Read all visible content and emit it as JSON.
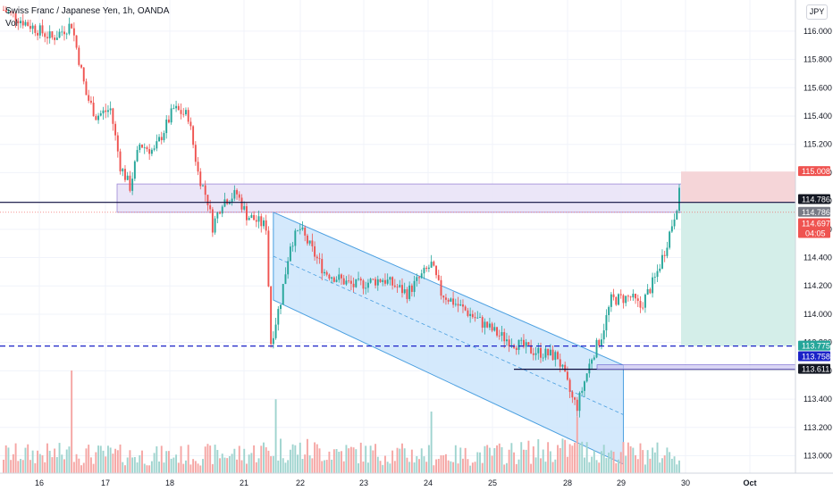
{
  "legend": {
    "symbol": "Swiss Franc / Japanese Yen, 1h, OANDA",
    "indicator": "Vol"
  },
  "currency_button": "JPY",
  "colors": {
    "up": "#26a69a",
    "down": "#ef5350",
    "vol_up": "#9fd4cf",
    "vol_down": "#f5a6a4",
    "zone_fill": "#e8e2f7",
    "zone_stroke": "#9c88d6",
    "channel_fill": "#cce5fb",
    "channel_stroke": "#4a9fe0",
    "profit_fill": "#d4eee9",
    "stop_fill": "#f5d5d8",
    "resistance": "#0c0c3e",
    "dashed_support": "#1b22c8"
  },
  "chart_data": {
    "type": "candlestick",
    "title": "Swiss Franc / Japanese Yen, 1h, OANDA",
    "indicator": "Vol",
    "ylim": [
      112.94,
      116.22
    ],
    "yticks": [
      "116.000",
      "115.800",
      "115.600",
      "115.400",
      "115.200",
      "115.000",
      "114.800",
      "114.600",
      "114.400",
      "114.200",
      "114.000",
      "113.800",
      "113.600",
      "113.400",
      "113.200",
      "113.000"
    ],
    "x_labels": [
      "16",
      "17",
      "18",
      "21",
      "22",
      "23",
      "24",
      "25",
      "28",
      "29",
      "30",
      "Oct"
    ],
    "bars_per_day": 24,
    "days_shown": 10,
    "price_path_keypoints": [
      [
        0,
        116.15
      ],
      [
        10,
        116.05
      ],
      [
        20,
        115.95
      ],
      [
        28,
        116.05
      ],
      [
        34,
        115.55
      ],
      [
        38,
        115.4
      ],
      [
        44,
        115.45
      ],
      [
        48,
        115.05
      ],
      [
        52,
        114.9
      ],
      [
        56,
        115.2
      ],
      [
        62,
        115.15
      ],
      [
        66,
        115.3
      ],
      [
        70,
        115.45
      ],
      [
        76,
        115.4
      ],
      [
        80,
        115.0
      ],
      [
        84,
        114.8
      ],
      [
        86,
        114.62
      ],
      [
        90,
        114.8
      ],
      [
        96,
        114.85
      ],
      [
        100,
        114.7
      ],
      [
        108,
        114.62
      ],
      [
        110,
        113.8
      ],
      [
        114,
        114.1
      ],
      [
        118,
        114.5
      ],
      [
        122,
        114.6
      ],
      [
        132,
        114.3
      ],
      [
        144,
        114.2
      ],
      [
        156,
        114.25
      ],
      [
        166,
        114.15
      ],
      [
        176,
        114.35
      ],
      [
        180,
        114.15
      ],
      [
        192,
        114.0
      ],
      [
        204,
        113.85
      ],
      [
        216,
        113.75
      ],
      [
        228,
        113.7
      ],
      [
        234,
        113.4
      ],
      [
        236,
        113.35
      ],
      [
        242,
        113.7
      ],
      [
        246,
        113.85
      ],
      [
        250,
        114.1
      ],
      [
        258,
        114.12
      ],
      [
        262,
        114.05
      ],
      [
        268,
        114.25
      ],
      [
        272,
        114.45
      ],
      [
        276,
        114.7
      ],
      [
        278,
        114.85
      ]
    ],
    "volume_profile_keypoints": [
      [
        0,
        0.22
      ],
      [
        30,
        0.22
      ],
      [
        60,
        0.2
      ],
      [
        100,
        0.22
      ],
      [
        110,
        0.28
      ],
      [
        150,
        0.23
      ],
      [
        190,
        0.2
      ],
      [
        230,
        0.27
      ],
      [
        260,
        0.23
      ],
      [
        278,
        0.22
      ]
    ],
    "volume_spikes": [
      [
        28,
        1.0
      ],
      [
        112,
        0.72
      ],
      [
        176,
        0.6
      ],
      [
        236,
        0.55
      ]
    ],
    "horizontal_lines": [
      {
        "name": "resistance-line",
        "price": 114.79,
        "style": "solid"
      },
      {
        "name": "dashed-support-line",
        "price": 113.775,
        "style": "dashed"
      },
      {
        "name": "support-line",
        "price": 113.611,
        "style": "solid"
      }
    ],
    "zones": [
      {
        "name": "supply-zone",
        "top": 114.92,
        "bottom": 114.72
      }
    ],
    "channel": {
      "upper": [
        [
          114.72
        ],
        [
          113.64
        ]
      ],
      "lower": [
        [
          114.1
        ],
        [
          112.94
        ]
      ],
      "start_bar": 111,
      "end_bar": 255
    },
    "position": {
      "type": "short",
      "entry": 114.786,
      "stop": 115.008,
      "target": 113.775
    },
    "price_tags": [
      {
        "label": "115.008",
        "price": 115.008,
        "color": "#ef5350"
      },
      {
        "label": "114.786",
        "price": 114.81,
        "color": "#131722"
      },
      {
        "label": "114.786",
        "price": 114.72,
        "color": "#787b86"
      },
      {
        "label": "114.697",
        "price": 114.64,
        "color": "#ef5350",
        "countdown": "04:05"
      },
      {
        "label": "113.775",
        "price": 113.775,
        "color": "#26a69a"
      },
      {
        "label": "113.758",
        "price": 113.7,
        "color": "#1b22c8"
      },
      {
        "label": "113.611",
        "price": 113.611,
        "color": "#131722"
      }
    ]
  }
}
